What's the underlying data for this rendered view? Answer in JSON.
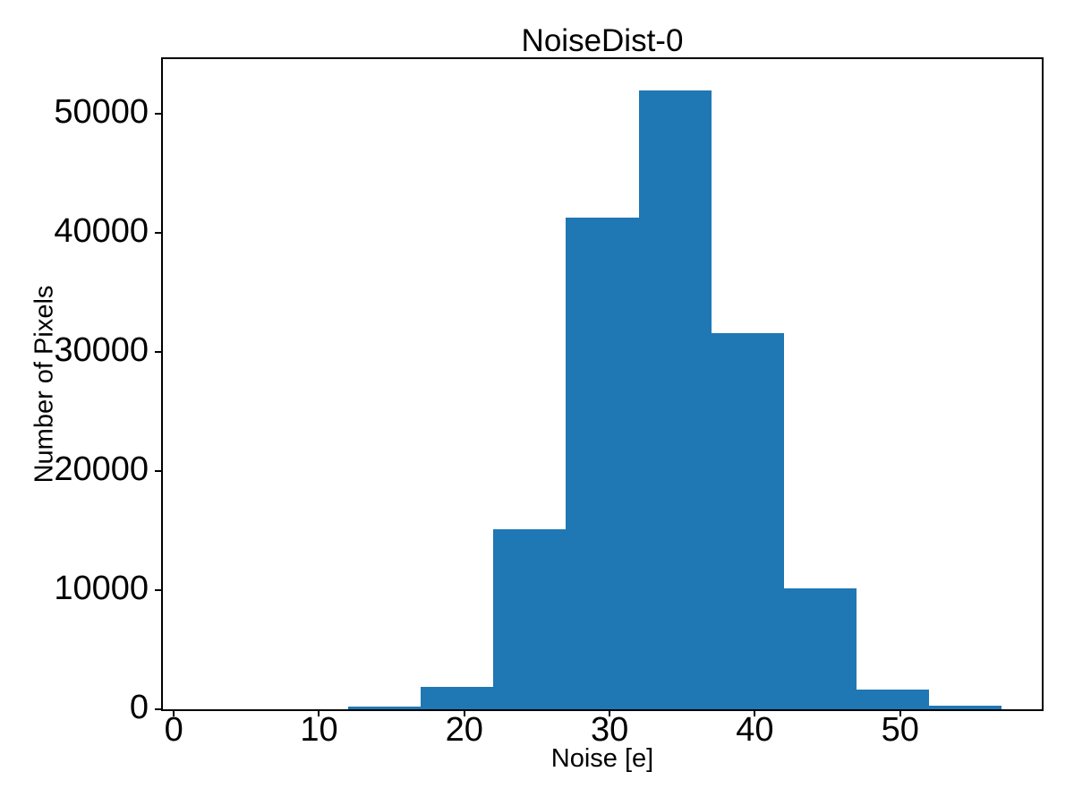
{
  "chart_data": {
    "type": "bar",
    "subtype": "histogram",
    "title": "NoiseDist-0",
    "xlabel": "Noise [e]",
    "ylabel": "Number of Pixels",
    "bar_color": "#1f77b4",
    "axis_color": "#000000",
    "background_color": "#ffffff",
    "bin_edges": [
      2,
      7,
      12,
      17,
      22,
      27,
      32,
      37,
      42,
      47,
      52,
      57
    ],
    "counts": [
      0,
      0,
      200,
      1900,
      15100,
      41300,
      52000,
      31600,
      10150,
      1630,
      320
    ],
    "xlim": [
      -0.75,
      59.75
    ],
    "ylim": [
      0,
      54600
    ],
    "xticks": [
      0,
      10,
      20,
      30,
      40,
      50
    ],
    "xtick_labels": [
      "0",
      "10",
      "20",
      "30",
      "40",
      "50"
    ],
    "yticks": [
      0,
      10000,
      20000,
      30000,
      40000,
      50000
    ],
    "ytick_labels": [
      "0",
      "10000",
      "20000",
      "30000",
      "40000",
      "50000"
    ],
    "grid": false,
    "legend": null
  }
}
